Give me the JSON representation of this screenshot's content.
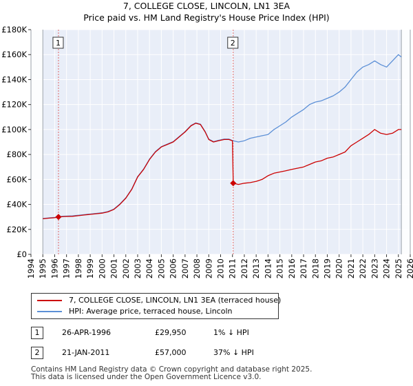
{
  "chart_data": {
    "type": "line",
    "title": "7, COLLEGE CLOSE, LINCOLN, LN1 3EA",
    "subtitle": "Price paid vs. HM Land Registry's House Price Index (HPI)",
    "xlim": [
      1994,
      2026
    ],
    "ylim": [
      0,
      180000
    ],
    "x_ticks": [
      "1994",
      "1995",
      "1996",
      "1997",
      "1998",
      "1999",
      "2000",
      "2001",
      "2002",
      "2003",
      "2004",
      "2005",
      "2006",
      "2007",
      "2008",
      "2009",
      "2010",
      "2011",
      "2012",
      "2013",
      "2014",
      "2015",
      "2016",
      "2017",
      "2018",
      "2019",
      "2020",
      "2021",
      "2022",
      "2023",
      "2024",
      "2025",
      "2026"
    ],
    "y_ticks": [
      {
        "value": 0,
        "label": "£0"
      },
      {
        "value": 20000,
        "label": "£20K"
      },
      {
        "value": 40000,
        "label": "£40K"
      },
      {
        "value": 60000,
        "label": "£60K"
      },
      {
        "value": 80000,
        "label": "£80K"
      },
      {
        "value": 100000,
        "label": "£100K"
      },
      {
        "value": 120000,
        "label": "£120K"
      },
      {
        "value": 140000,
        "label": "£140K"
      },
      {
        "value": 160000,
        "label": "£160K"
      },
      {
        "value": 180000,
        "label": "£180K"
      }
    ],
    "grid": true,
    "shaded_regions": [
      [
        1994,
        1995
      ],
      [
        2025.25,
        2026
      ]
    ],
    "series": [
      {
        "name": "7, COLLEGE CLOSE, LINCOLN, LN1 3EA (terraced house)",
        "color": "#cc0000",
        "x": [
          1995.0,
          1995.5,
          1996.0,
          1996.32,
          1996.8,
          1997.5,
          1998.0,
          1998.5,
          1999.0,
          1999.5,
          2000.0,
          2000.5,
          2001.0,
          2001.5,
          2002.0,
          2002.5,
          2003.0,
          2003.5,
          2004.0,
          2004.5,
          2005.0,
          2005.5,
          2006.0,
          2006.5,
          2007.0,
          2007.5,
          2007.9,
          2008.3,
          2008.7,
          2009.0,
          2009.4,
          2009.8,
          2010.3,
          2010.7,
          2011.0,
          2011.06,
          2011.5,
          2012.0,
          2012.5,
          2013.0,
          2013.5,
          2014.0,
          2014.5,
          2015.0,
          2015.5,
          2016.0,
          2016.5,
          2017.0,
          2017.5,
          2018.0,
          2018.5,
          2019.0,
          2019.5,
          2020.0,
          2020.5,
          2021.0,
          2021.5,
          2022.0,
          2022.5,
          2023.0,
          2023.5,
          2024.0,
          2024.5,
          2025.0,
          2025.25
        ],
        "y": [
          28500,
          29000,
          29300,
          29950,
          30300,
          30500,
          31000,
          31500,
          32000,
          32500,
          33000,
          34000,
          36000,
          40000,
          45000,
          52000,
          62000,
          68000,
          76000,
          82000,
          86000,
          88000,
          90000,
          94000,
          98000,
          103000,
          105000,
          104000,
          98000,
          92000,
          90000,
          91000,
          92000,
          92000,
          91000,
          57000,
          56000,
          57000,
          57500,
          58500,
          60000,
          63000,
          65000,
          66000,
          67000,
          68000,
          69000,
          70000,
          72000,
          74000,
          75000,
          77000,
          78000,
          80000,
          82000,
          87000,
          90000,
          93000,
          96000,
          100000,
          97000,
          96000,
          97000,
          100000,
          100000
        ]
      },
      {
        "name": "HPI: Average price, terraced house, Lincoln",
        "color": "#5b8fd6",
        "x": [
          1995.0,
          1995.5,
          1996.0,
          1996.32,
          1996.8,
          1997.5,
          1998.0,
          1998.5,
          1999.0,
          1999.5,
          2000.0,
          2000.5,
          2001.0,
          2001.5,
          2002.0,
          2002.5,
          2003.0,
          2003.5,
          2004.0,
          2004.5,
          2005.0,
          2005.5,
          2006.0,
          2006.5,
          2007.0,
          2007.5,
          2007.9,
          2008.3,
          2008.7,
          2009.0,
          2009.4,
          2009.8,
          2010.3,
          2010.7,
          2011.06,
          2011.5,
          2012.0,
          2012.5,
          2013.0,
          2013.5,
          2014.0,
          2014.5,
          2015.0,
          2015.5,
          2016.0,
          2016.5,
          2017.0,
          2017.5,
          2018.0,
          2018.5,
          2019.0,
          2019.5,
          2020.0,
          2020.5,
          2021.0,
          2021.5,
          2022.0,
          2022.5,
          2023.0,
          2023.5,
          2024.0,
          2024.5,
          2025.0,
          2025.25
        ],
        "y": [
          28700,
          29200,
          29600,
          30200,
          30600,
          30800,
          31300,
          31800,
          32300,
          32800,
          33300,
          34300,
          36300,
          40300,
          45300,
          52300,
          62300,
          68300,
          76300,
          82300,
          86300,
          88300,
          90300,
          94300,
          98300,
          103300,
          105300,
          104300,
          98300,
          92300,
          90300,
          91300,
          92300,
          92300,
          91000,
          90000,
          91000,
          93000,
          94000,
          95000,
          96000,
          100000,
          103000,
          106000,
          110000,
          113000,
          116000,
          120000,
          122000,
          123000,
          125000,
          127000,
          130000,
          134000,
          140000,
          146000,
          150000,
          152000,
          155000,
          152000,
          150000,
          155000,
          160000,
          158000
        ]
      }
    ],
    "annotations": [
      {
        "label": "1",
        "x": 1996.32,
        "y": 29950
      },
      {
        "label": "2",
        "x": 2011.06,
        "y": 57000
      }
    ]
  },
  "legend": {
    "items": [
      {
        "label": "7, COLLEGE CLOSE, LINCOLN, LN1 3EA (terraced house)",
        "color": "#cc0000"
      },
      {
        "label": "HPI: Average price, terraced house, Lincoln",
        "color": "#5b8fd6"
      }
    ]
  },
  "transactions": [
    {
      "num": "1",
      "date": "26-APR-1996",
      "price": "£29,950",
      "diff": "1% ↓ HPI"
    },
    {
      "num": "2",
      "date": "21-JAN-2011",
      "price": "£57,000",
      "diff": "37% ↓ HPI"
    }
  ],
  "footer": {
    "line1": "Contains HM Land Registry data © Crown copyright and database right 2025.",
    "line2": "This data is licensed under the Open Government Licence v3.0."
  }
}
